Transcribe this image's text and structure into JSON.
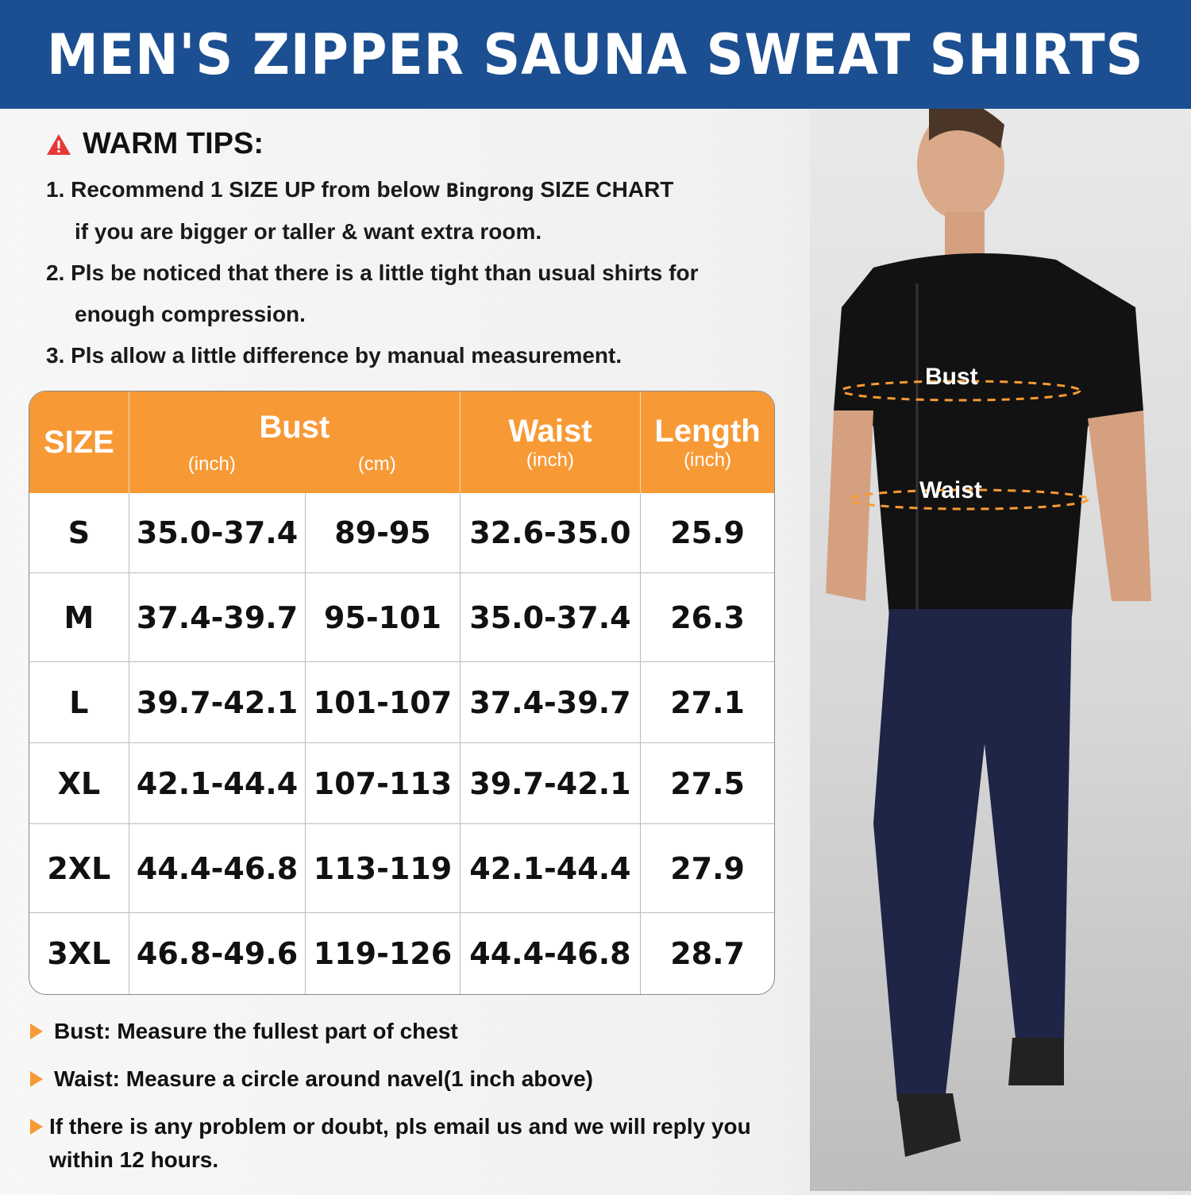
{
  "header": {
    "title": "MEN'S ZIPPER SAUNA SWEAT SHIRTS"
  },
  "tips": {
    "title": "WARM TIPS:",
    "items": [
      {
        "line1": "1. Recommend 1 SIZE UP from below ",
        "brand": "Bingrong",
        "line1b": " SIZE CHART",
        "line2": "if you are bigger or taller & want extra room."
      },
      {
        "line1": "2. Pls be noticed that there is a little tight than usual shirts  for",
        "line2": "enough compression."
      },
      {
        "line1": "3. Pls allow a little difference by manual measurement."
      }
    ]
  },
  "table": {
    "headers": {
      "size": "SIZE",
      "bust": "Bust",
      "bust_inch": "(inch)",
      "bust_cm": "(cm)",
      "waist": "Waist",
      "waist_unit": "(inch)",
      "length": "Length",
      "length_unit": "(inch)"
    },
    "rows": [
      [
        "S",
        "35.0-37.4",
        "89-95",
        "32.6-35.0",
        "25.9"
      ],
      [
        "M",
        "37.4-39.7",
        "95-101",
        "35.0-37.4",
        "26.3"
      ],
      [
        "L",
        "39.7-42.1",
        "101-107",
        "37.4-39.7",
        "27.1"
      ],
      [
        "XL",
        "42.1-44.4",
        "107-113",
        "39.7-42.1",
        "27.5"
      ],
      [
        "2XL",
        "44.4-46.8",
        "113-119",
        "42.1-44.4",
        "27.9"
      ],
      [
        "3XL",
        "46.8-49.6",
        "119-126",
        "44.4-46.8",
        "28.7"
      ]
    ]
  },
  "notes": [
    "Bust: Measure the fullest part of chest",
    "Waist: Measure a circle around navel(1 inch above)",
    "If there is any problem or doubt, pls email us and we will reply you within 12 hours."
  ],
  "figure": {
    "bust_label": "Bust",
    "waist_label": "Waist"
  },
  "colors": {
    "header": "#1c4f91",
    "accent": "#f79a36",
    "warning": "#e53935"
  }
}
